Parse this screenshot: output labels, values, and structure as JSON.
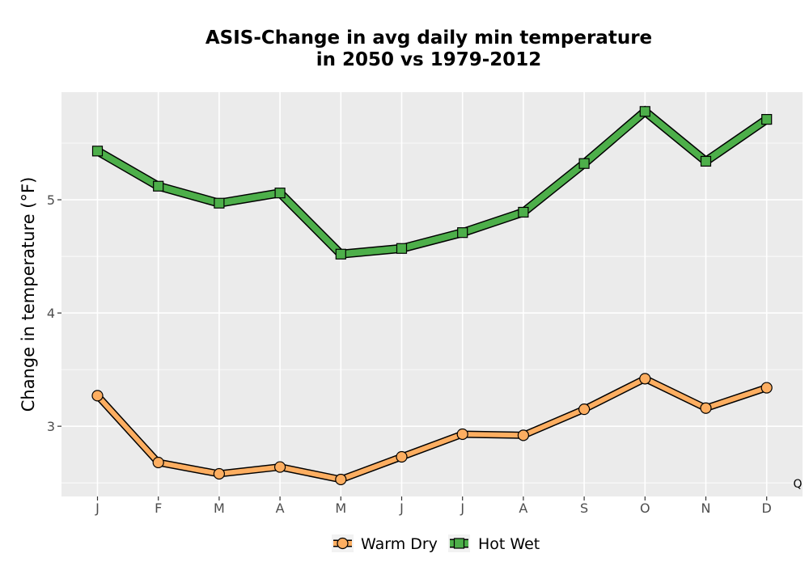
{
  "chart_data": {
    "type": "line",
    "title_line1": "ASIS-Change in avg daily min temperature",
    "title_line2": "in 2050 vs 1979-2012",
    "xlabel": "",
    "ylabel": "Change in temperature (°F)",
    "categories": [
      "J",
      "F",
      "M",
      "A",
      "M",
      "J",
      "J",
      "A",
      "S",
      "O",
      "N",
      "D"
    ],
    "ylim": [
      2.38,
      5.95
    ],
    "yticks": [
      3,
      4,
      5
    ],
    "grid": true,
    "legend_position": "bottom",
    "corner_note": "Q",
    "series": [
      {
        "name": "Warm Dry",
        "color": "#fdae61",
        "marker": "circle",
        "values": [
          3.27,
          2.68,
          2.58,
          2.64,
          2.53,
          2.73,
          2.93,
          2.92,
          3.15,
          3.42,
          3.16,
          3.34
        ]
      },
      {
        "name": "Hot Wet",
        "color": "#4daf4a",
        "marker": "square",
        "values": [
          5.43,
          5.12,
          4.97,
          5.06,
          4.52,
          4.57,
          4.71,
          4.89,
          5.32,
          5.78,
          5.34,
          5.71
        ]
      }
    ]
  }
}
